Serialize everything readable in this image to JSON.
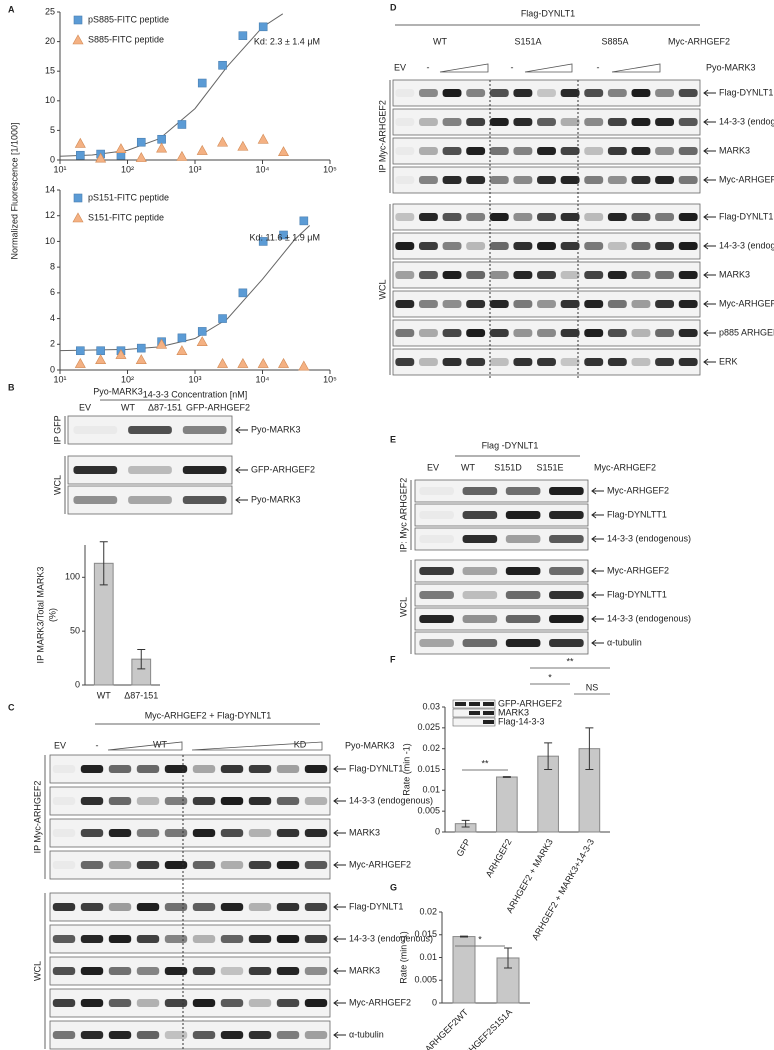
{
  "chart_data": [
    {
      "panel": "A",
      "type": "scatter",
      "log_x": true,
      "xlim": [
        10,
        100000
      ],
      "xticks": [
        {
          "value": 10,
          "label": "10¹"
        },
        {
          "value": 100,
          "label": "10²"
        },
        {
          "value": 1000,
          "label": "10³"
        },
        {
          "value": 10000,
          "label": "10⁴"
        },
        {
          "value": 100000,
          "label": "10⁵"
        }
      ],
      "ylim": [
        0,
        25
      ],
      "yticks": [
        0,
        5,
        10,
        15,
        20,
        25
      ],
      "ylabel": "Normalized Fluorescence [1/1000]",
      "annotation": "Kd: 2.3 ± 1.4 μM",
      "legend": "upper left",
      "series": [
        {
          "name": "pS885-FITC peptide",
          "color": "#5b9bd5",
          "marker": "square",
          "x": [
            20,
            40,
            80,
            160,
            320,
            640,
            1280,
            2560,
            5120,
            10240
          ],
          "values": [
            0.8,
            1,
            0.8,
            3,
            3.5,
            6,
            13,
            16,
            21,
            22.5
          ]
        },
        {
          "name": "S885-FITC peptide",
          "color": "#f4b183",
          "marker": "triangle",
          "x": [
            20,
            40,
            80,
            160,
            320,
            640,
            1280,
            2560,
            5120,
            10240,
            20480
          ],
          "values": [
            2.8,
            0.3,
            1.9,
            0.4,
            2,
            0.6,
            1.6,
            3,
            2.3,
            3.5,
            1.4
          ]
        }
      ],
      "fit": {
        "color": "#666666",
        "x": [
          10,
          30,
          100,
          300,
          1000,
          3000,
          10000,
          20000
        ],
        "values": [
          0.62,
          0.85,
          1.63,
          3.62,
          8.68,
          15.78,
          22.45,
          24.7
        ]
      }
    },
    {
      "type": "scatter",
      "log_x": true,
      "xlim": [
        10,
        100000
      ],
      "xticks": [
        {
          "value": 10,
          "label": "10¹"
        },
        {
          "value": 100,
          "label": "10²"
        },
        {
          "value": 1000,
          "label": "10³"
        },
        {
          "value": 10000,
          "label": "10⁴"
        },
        {
          "value": 100000,
          "label": "10⁵"
        }
      ],
      "ylim": [
        0,
        14
      ],
      "yticks": [
        0,
        2,
        4,
        6,
        8,
        10,
        12,
        14
      ],
      "xlabel": "14-3-3 Concentration [nM]",
      "annotation": "Kd: 11.6 ± 1.9 μM",
      "legend": "upper left",
      "series": [
        {
          "name": "pS151-FITC peptide",
          "color": "#5b9bd5",
          "marker": "square",
          "x": [
            20,
            40,
            80,
            160,
            320,
            640,
            1280,
            2560,
            5120,
            10240,
            20480,
            40960
          ],
          "values": [
            1.5,
            1.5,
            1.5,
            1.7,
            2.2,
            2.5,
            3,
            4,
            6,
            10,
            10.5,
            11.6
          ]
        },
        {
          "name": "S151-FITC peptide",
          "color": "#f4b183",
          "marker": "triangle",
          "x": [
            20,
            40,
            80,
            160,
            320,
            640,
            1280,
            2560,
            5120,
            10240,
            20480,
            40960
          ],
          "values": [
            0.5,
            0.8,
            1.2,
            0.8,
            2,
            1.5,
            2.2,
            0.5,
            0.5,
            0.5,
            0.5,
            0.3
          ]
        }
      ],
      "fit": {
        "color": "#666666",
        "x": [
          10,
          100,
          300,
          1000,
          3000,
          10000,
          30000,
          50000
        ],
        "values": [
          1.51,
          1.6,
          1.8,
          2.45,
          3.97,
          7.06,
          10.15,
          11.24
        ]
      }
    },
    {
      "type": "bar",
      "categories": [
        "WT",
        "Δ87-151"
      ],
      "values": [
        113,
        24
      ],
      "errors": [
        20,
        9
      ],
      "color": "#c8c8c8",
      "ylim": [
        0,
        130
      ],
      "yticks": [
        0,
        50,
        100
      ],
      "ylabel": [
        "IP MARK3/Total MARK3",
        "(%)"
      ]
    },
    {
      "panel": "F",
      "type": "bar",
      "categories": [
        "GFP",
        "ARHGEF2",
        "ARHGEF2 + MARK3",
        "ARHGEF2 + MARK3+14-3-3"
      ],
      "values": [
        0.002,
        0.0132,
        0.0182,
        0.02
      ],
      "errors": [
        0.0008,
        0.0001,
        0.0032,
        0.005
      ],
      "color": "#c8c8c8",
      "ylim": [
        0,
        0.03
      ],
      "yticks": [
        0,
        0.005,
        0.01,
        0.015,
        0.02,
        0.025,
        0.03
      ],
      "ylabel": [
        "Rate (min -1)"
      ],
      "significance": [
        "**",
        "*",
        "NS",
        "**"
      ],
      "inset_labels": [
        "GFP-ARHGEF2",
        "MARK3",
        "Flag-14-3-3"
      ]
    },
    {
      "panel": "G",
      "type": "bar",
      "categories": [
        "ARHGEF2WT",
        "ARHGEF2S151A"
      ],
      "values": [
        0.0146,
        0.0099
      ],
      "errors": [
        0.0001,
        0.0022
      ],
      "color": "#c8c8c8",
      "ylim": [
        0,
        0.02
      ],
      "yticks": [
        0,
        0.005,
        0.01,
        0.015,
        0.02
      ],
      "ylabel": [
        "Rate (min -1)"
      ],
      "significance": [
        "*"
      ]
    }
  ],
  "blots": [
    {
      "panel": "B",
      "top_labels": [
        "Pyo-MARK3",
        "EV",
        "WT",
        "Δ87-151",
        "GFP-ARHGEF2"
      ],
      "sections": [
        {
          "side": "IP GFP",
          "rows": [
            "Pyo-MARK3"
          ]
        },
        {
          "side": "WCL",
          "rows": [
            "GFP-ARHGEF2",
            "Pyo-MARK3"
          ]
        }
      ]
    },
    {
      "panel": "C",
      "top_labels": [
        "Myc-ARHGEF2 + Flag-DYNLT1",
        "EV",
        "-",
        "WT",
        "KD",
        "Pyo-MARK3"
      ],
      "sections": [
        {
          "side": "IP Myc-ARHGEF2",
          "rows": [
            "Flag-DYNLT1",
            "14-3-3 (endogenous)",
            "MARK3",
            "Myc-ARHGEF2"
          ]
        },
        {
          "side": "WCL",
          "rows": [
            "Flag-DYNLT1",
            "14-3-3 (endogenous)",
            "MARK3",
            "Myc-ARHGEF2",
            "α-tubulin"
          ]
        }
      ]
    },
    {
      "panel": "D",
      "top_labels": [
        "Flag-DYNLT1",
        "WT",
        "S151A",
        "S885A",
        "Myc-ARHGEF2",
        "EV",
        "-",
        "-",
        "-",
        "Pyo-MARK3"
      ],
      "sections": [
        {
          "side": "IP Myc-ARHGEF2",
          "rows": [
            "Flag-DYNLT1",
            "14-3-3 (endogenous)",
            "MARK3",
            "Myc-ARHGEF2"
          ]
        },
        {
          "side": "WCL",
          "rows": [
            "Flag-DYNLT1",
            "14-3-3 (endogenous)",
            "MARK3",
            "Myc-ARHGEF2",
            "p885 ARHGEF2",
            "ERK"
          ]
        }
      ]
    },
    {
      "panel": "E",
      "top_labels": [
        "Flag -DYNLT1",
        "EV",
        "WT",
        "S151D",
        "S151E",
        "Myc-ARHGEF2"
      ],
      "sections": [
        {
          "side": "IP: Myc ARHGEF2",
          "rows": [
            "Myc-ARHGEF2",
            "Flag-DYNLTT1",
            "14-3-3 (endogenous)"
          ]
        },
        {
          "side": "WCL",
          "rows": [
            "Myc-ARHGEF2",
            "Flag-DYNLTT1",
            "14-3-3 (endogenous)",
            "α-tubulin"
          ]
        }
      ]
    }
  ]
}
